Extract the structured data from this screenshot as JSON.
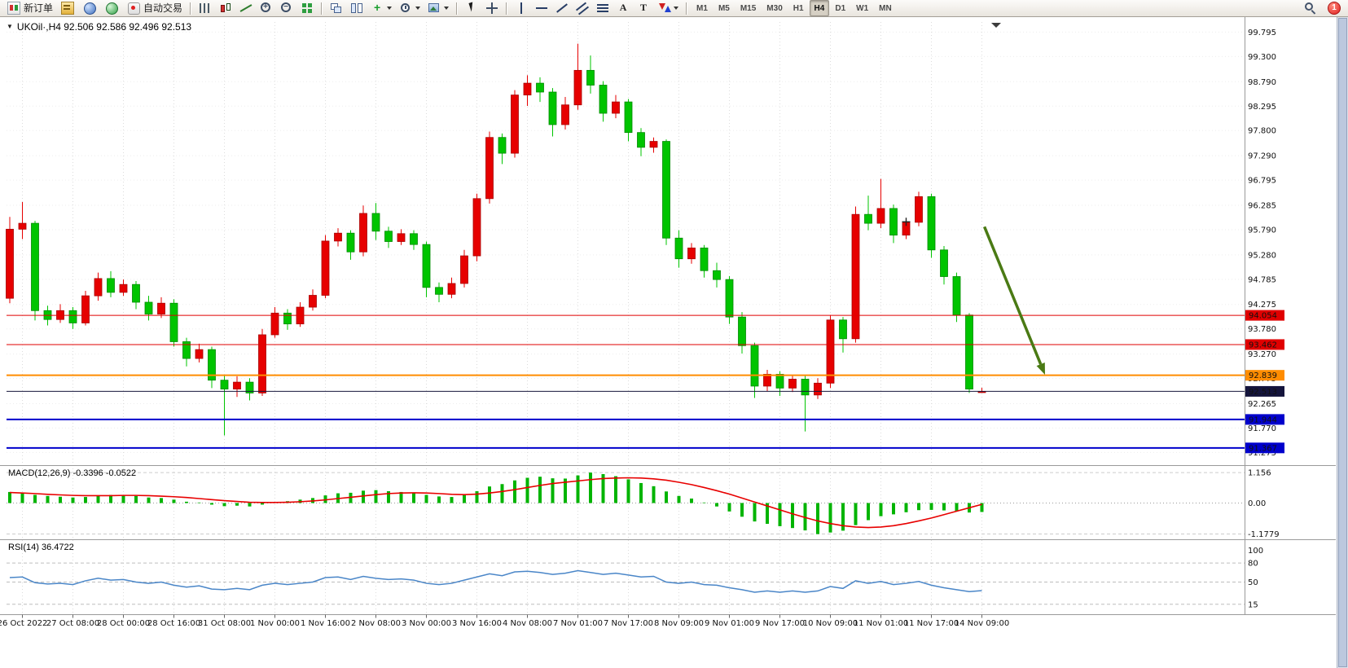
{
  "toolbar": {
    "groups": [
      {
        "items": [
          {
            "name": "new-order-button",
            "icon": "neworder",
            "label": "新订单"
          },
          {
            "name": "market-watch-button",
            "icon": "marketwatch"
          },
          {
            "name": "navigator-button",
            "icon": "navigator"
          },
          {
            "name": "terminal-button",
            "icon": "terminal"
          },
          {
            "name": "autotrading-button",
            "icon": "autotrade",
            "label": "自动交易"
          }
        ]
      },
      {
        "items": [
          {
            "name": "bar-chart-button",
            "icon": "bars"
          },
          {
            "name": "candlestick-chart-button",
            "icon": "candles"
          },
          {
            "name": "line-chart-button",
            "icon": "linechart"
          },
          {
            "name": "zoom-in-button",
            "icon": "zoomin"
          },
          {
            "name": "zoom-out-button",
            "icon": "zoomout"
          },
          {
            "name": "tile-windows-button",
            "icon": "tile"
          }
        ]
      },
      {
        "items": [
          {
            "name": "cascade-windows-button",
            "icon": "cascade"
          },
          {
            "name": "chart-shift-button",
            "icon": "shift"
          },
          {
            "name": "add-indicator-button",
            "icon": "indicator",
            "dropdown": true
          },
          {
            "name": "period-select-button",
            "icon": "clock",
            "dropdown": true
          },
          {
            "name": "template-button",
            "icon": "template",
            "dropdown": true
          }
        ]
      },
      {
        "items": [
          {
            "name": "cursor-button",
            "icon": "cursor"
          },
          {
            "name": "crosshair-button",
            "icon": "crosshair"
          }
        ]
      },
      {
        "items": [
          {
            "name": "vertical-line-button",
            "icon": "vline"
          },
          {
            "name": "horizontal-line-button",
            "icon": "hline"
          },
          {
            "name": "trendline-button",
            "icon": "trendline"
          },
          {
            "name": "channel-button",
            "icon": "channel"
          },
          {
            "name": "fibonacci-button",
            "icon": "fibo"
          },
          {
            "name": "text-button",
            "icon": "textA"
          },
          {
            "name": "text-label-button",
            "icon": "labelT"
          },
          {
            "name": "arrows-button",
            "icon": "arrows",
            "dropdown": true
          }
        ]
      },
      {
        "items": [
          {
            "name": "tf-m1-button",
            "tf": "M1"
          },
          {
            "name": "tf-m5-button",
            "tf": "M5"
          },
          {
            "name": "tf-m15-button",
            "tf": "M15"
          },
          {
            "name": "tf-m30-button",
            "tf": "M30"
          },
          {
            "name": "tf-h1-button",
            "tf": "H1"
          },
          {
            "name": "tf-h4-button",
            "tf": "H4",
            "active": true
          },
          {
            "name": "tf-d1-button",
            "tf": "D1"
          },
          {
            "name": "tf-w1-button",
            "tf": "W1"
          },
          {
            "name": "tf-mn-button",
            "tf": "MN"
          }
        ]
      }
    ],
    "right": [
      {
        "name": "search-button",
        "icon": "search"
      },
      {
        "name": "notifications-badge",
        "badge": "1"
      }
    ]
  },
  "chart": {
    "dropdown_glyph": "▼",
    "symbol_line": "UKOil·,H4 92.506 92.586 92.496 92.513",
    "macd_label": "MACD(12,26,9) -0.3396 -0.0522",
    "rsi_label": "RSI(14) 36.4722"
  },
  "chart_data": {
    "type": "candlestick",
    "symbol": "UKOil",
    "timeframe": "H4",
    "current_bar": {
      "open": 92.506,
      "high": 92.586,
      "low": 92.496,
      "close": 92.513
    },
    "up_color": "#e60000",
    "down_color": "#00c400",
    "price_range": [
      91.1,
      100.0
    ],
    "price_axis": [
      99.795,
      99.3,
      98.79,
      98.295,
      97.8,
      97.29,
      96.795,
      96.285,
      95.79,
      95.28,
      94.785,
      94.275,
      93.78,
      93.27,
      92.775,
      92.265,
      91.77,
      91.275
    ],
    "x_ticks": {
      "indices": [
        1,
        5,
        9,
        13,
        17,
        21,
        25,
        29,
        33,
        37,
        41,
        45,
        49,
        53,
        57,
        61,
        65,
        69,
        73,
        77
      ],
      "labels": [
        "26 Oct 2022",
        "27 Oct 08:00",
        "28 Oct 00:00",
        "28 Oct 16:00",
        "31 Oct 08:00",
        "1 Nov 00:00",
        "1 Nov 16:00",
        "2 Nov 08:00",
        "3 Nov 00:00",
        "3 Nov 16:00",
        "4 Nov 08:00",
        "7 Nov 01:00",
        "7 Nov 17:00",
        "8 Nov 09:00",
        "9 Nov 01:00",
        "9 Nov 17:00",
        "10 Nov 09:00",
        "11 Nov 01:00",
        "11 Nov 17:00",
        "14 Nov 09:00"
      ]
    },
    "candles": [
      [
        94.4,
        96.05,
        94.3,
        95.8
      ],
      [
        95.8,
        96.35,
        95.6,
        95.92
      ],
      [
        95.92,
        95.97,
        93.95,
        94.15
      ],
      [
        94.15,
        94.25,
        93.85,
        93.97
      ],
      [
        93.97,
        94.28,
        93.9,
        94.15
      ],
      [
        94.15,
        94.22,
        93.78,
        93.9
      ],
      [
        93.9,
        94.55,
        93.85,
        94.45
      ],
      [
        94.45,
        94.92,
        94.35,
        94.8
      ],
      [
        94.8,
        94.95,
        94.42,
        94.52
      ],
      [
        94.52,
        94.78,
        94.45,
        94.68
      ],
      [
        94.68,
        94.75,
        94.18,
        94.32
      ],
      [
        94.32,
        94.45,
        93.95,
        94.08
      ],
      [
        94.08,
        94.42,
        94.0,
        94.3
      ],
      [
        94.3,
        94.38,
        93.42,
        93.52
      ],
      [
        93.52,
        93.6,
        93.02,
        93.18
      ],
      [
        93.18,
        93.48,
        93.1,
        93.36
      ],
      [
        93.36,
        93.42,
        92.58,
        92.74
      ],
      [
        92.74,
        92.85,
        91.62,
        92.56
      ],
      [
        92.56,
        92.82,
        92.4,
        92.7
      ],
      [
        92.7,
        92.78,
        92.33,
        92.48
      ],
      [
        92.48,
        93.78,
        92.42,
        93.66
      ],
      [
        93.66,
        94.22,
        93.6,
        94.1
      ],
      [
        94.1,
        94.18,
        93.76,
        93.88
      ],
      [
        93.88,
        94.32,
        93.82,
        94.22
      ],
      [
        94.22,
        94.58,
        94.15,
        94.46
      ],
      [
        94.46,
        95.68,
        94.4,
        95.56
      ],
      [
        95.56,
        95.82,
        95.45,
        95.72
      ],
      [
        95.72,
        95.78,
        95.18,
        95.34
      ],
      [
        95.34,
        96.28,
        95.25,
        96.12
      ],
      [
        96.12,
        96.33,
        95.58,
        95.76
      ],
      [
        95.76,
        95.85,
        95.42,
        95.55
      ],
      [
        95.55,
        95.8,
        95.48,
        95.71
      ],
      [
        95.71,
        95.78,
        95.38,
        95.49
      ],
      [
        95.49,
        95.55,
        94.42,
        94.62
      ],
      [
        94.62,
        94.72,
        94.32,
        94.48
      ],
      [
        94.48,
        94.82,
        94.4,
        94.7
      ],
      [
        94.7,
        95.38,
        94.62,
        95.26
      ],
      [
        95.26,
        96.52,
        95.15,
        96.42
      ],
      [
        96.42,
        97.78,
        96.32,
        97.66
      ],
      [
        97.66,
        97.74,
        97.12,
        97.34
      ],
      [
        97.34,
        98.62,
        97.25,
        98.52
      ],
      [
        98.52,
        98.92,
        98.3,
        98.76
      ],
      [
        98.76,
        98.88,
        98.38,
        98.58
      ],
      [
        98.58,
        98.66,
        97.68,
        97.92
      ],
      [
        97.92,
        98.48,
        97.82,
        98.32
      ],
      [
        98.32,
        99.56,
        98.22,
        99.02
      ],
      [
        99.02,
        99.32,
        98.55,
        98.72
      ],
      [
        98.72,
        98.8,
        97.98,
        98.15
      ],
      [
        98.15,
        98.52,
        98.05,
        98.38
      ],
      [
        98.38,
        98.44,
        97.58,
        97.76
      ],
      [
        97.76,
        97.85,
        97.28,
        97.46
      ],
      [
        97.46,
        97.66,
        97.35,
        97.58
      ],
      [
        97.58,
        97.62,
        95.48,
        95.62
      ],
      [
        95.62,
        95.78,
        95.02,
        95.2
      ],
      [
        95.2,
        95.52,
        95.1,
        95.42
      ],
      [
        95.42,
        95.48,
        94.82,
        94.96
      ],
      [
        94.96,
        95.12,
        94.62,
        94.78
      ],
      [
        94.78,
        94.85,
        93.88,
        94.02
      ],
      [
        94.02,
        94.12,
        93.28,
        93.44
      ],
      [
        93.44,
        93.5,
        92.38,
        92.62
      ],
      [
        92.62,
        92.95,
        92.52,
        92.86
      ],
      [
        92.86,
        92.92,
        92.42,
        92.58
      ],
      [
        92.58,
        92.85,
        92.5,
        92.76
      ],
      [
        92.76,
        92.84,
        91.7,
        92.44
      ],
      [
        92.44,
        92.78,
        92.36,
        92.68
      ],
      [
        92.68,
        94.06,
        92.58,
        93.96
      ],
      [
        93.96,
        94.02,
        93.3,
        93.58
      ],
      [
        93.58,
        96.26,
        93.5,
        96.1
      ],
      [
        96.1,
        96.48,
        95.78,
        95.92
      ],
      [
        95.92,
        96.82,
        95.82,
        96.22
      ],
      [
        96.22,
        96.3,
        95.52,
        95.68
      ],
      [
        95.68,
        96.02,
        95.6,
        95.94
      ],
      [
        95.94,
        96.56,
        95.86,
        96.46
      ],
      [
        96.46,
        96.52,
        95.22,
        95.38
      ],
      [
        95.38,
        95.46,
        94.68,
        94.84
      ],
      [
        94.84,
        94.92,
        93.92,
        94.06
      ],
      [
        94.06,
        94.1,
        92.48,
        92.56
      ],
      [
        92.506,
        92.586,
        92.496,
        92.513
      ]
    ],
    "levels": [
      {
        "price": 94.054,
        "label": "94.054",
        "color": "#e00000",
        "width": 1
      },
      {
        "price": 93.462,
        "label": "93.462",
        "color": "#e00000",
        "width": 1
      },
      {
        "price": 92.839,
        "label": "92.839",
        "color": "#ff8c00",
        "width": 2
      },
      {
        "price": 92.513,
        "label": "92.513",
        "color": "#14143c",
        "width": 1
      },
      {
        "price": 91.944,
        "label": "91.944",
        "color": "#0000cc",
        "width": 2
      },
      {
        "price": 91.367,
        "label": "91.367",
        "color": "#0000cc",
        "width": 2
      }
    ],
    "arrow_annotation": {
      "from": {
        "index": 77.2,
        "price": 95.85
      },
      "to": {
        "index": 82.0,
        "price": 92.85
      },
      "color": "#4a7a14"
    },
    "cross_marker": {
      "index": 71,
      "price": 95.95
    },
    "macd": {
      "label": "MACD(12,26,9) -0.3396 -0.0522",
      "hist_color": "#00b400",
      "signal_color": "#e80000",
      "values": [
        0.42,
        0.38,
        0.31,
        0.27,
        0.24,
        0.21,
        0.23,
        0.28,
        0.31,
        0.31,
        0.27,
        0.21,
        0.19,
        0.13,
        0.05,
        0.02,
        -0.06,
        -0.12,
        -0.1,
        -0.13,
        -0.06,
        0.02,
        0.07,
        0.13,
        0.19,
        0.29,
        0.37,
        0.39,
        0.47,
        0.49,
        0.45,
        0.42,
        0.39,
        0.31,
        0.25,
        0.23,
        0.31,
        0.45,
        0.63,
        0.72,
        0.86,
        0.96,
        1.0,
        0.94,
        0.93,
        1.05,
        1.156,
        1.1,
        1.02,
        0.9,
        0.76,
        0.64,
        0.44,
        0.27,
        0.17,
        0.02,
        -0.13,
        -0.32,
        -0.52,
        -0.7,
        -0.79,
        -0.88,
        -0.95,
        -1.04,
        -1.1779,
        -1.12,
        -1.05,
        -0.84,
        -0.65,
        -0.5,
        -0.43,
        -0.35,
        -0.27,
        -0.26,
        -0.28,
        -0.31,
        -0.36,
        -0.3396
      ],
      "signal": [
        0.4,
        0.38,
        0.36,
        0.33,
        0.31,
        0.29,
        0.28,
        0.28,
        0.28,
        0.29,
        0.29,
        0.28,
        0.26,
        0.24,
        0.21,
        0.17,
        0.13,
        0.09,
        0.06,
        0.03,
        0.02,
        0.02,
        0.03,
        0.05,
        0.08,
        0.12,
        0.17,
        0.22,
        0.27,
        0.32,
        0.36,
        0.38,
        0.39,
        0.38,
        0.36,
        0.33,
        0.32,
        0.34,
        0.38,
        0.44,
        0.51,
        0.59,
        0.67,
        0.74,
        0.79,
        0.84,
        0.89,
        0.93,
        0.95,
        0.96,
        0.95,
        0.92,
        0.87,
        0.79,
        0.7,
        0.59,
        0.47,
        0.34,
        0.19,
        0.04,
        -0.11,
        -0.26,
        -0.41,
        -0.55,
        -0.68,
        -0.78,
        -0.86,
        -0.91,
        -0.93,
        -0.91,
        -0.86,
        -0.78,
        -0.68,
        -0.57,
        -0.44,
        -0.31,
        -0.18,
        -0.05
      ],
      "axis": [
        {
          "value": 1.156,
          "label": "1.156"
        },
        {
          "value": 0,
          "label": "0.00"
        },
        {
          "value": -1.1779,
          "label": "-1.1779"
        }
      ]
    },
    "rsi": {
      "label": "RSI(14) 36.4722",
      "color": "#4a86c8",
      "values": [
        57,
        58,
        49,
        47,
        48,
        46,
        52,
        56,
        53,
        54,
        50,
        48,
        50,
        45,
        42,
        44,
        39,
        38,
        40,
        38,
        45,
        48,
        46,
        48,
        50,
        57,
        58,
        54,
        59,
        56,
        54,
        55,
        53,
        48,
        46,
        48,
        53,
        58,
        63,
        60,
        66,
        67,
        65,
        62,
        64,
        68,
        65,
        62,
        64,
        61,
        58,
        59,
        50,
        48,
        50,
        46,
        45,
        41,
        38,
        34,
        36,
        34,
        36,
        34,
        36,
        43,
        40,
        52,
        48,
        51,
        46,
        48,
        51,
        45,
        41,
        38,
        35,
        36.4722
      ],
      "axis": [
        {
          "value": 100,
          "label": "100"
        },
        {
          "value": 80,
          "label": "80"
        },
        {
          "value": 50,
          "label": "50"
        },
        {
          "value": 15,
          "label": "15"
        }
      ],
      "dashed_levels": [
        80,
        50,
        15
      ]
    }
  }
}
